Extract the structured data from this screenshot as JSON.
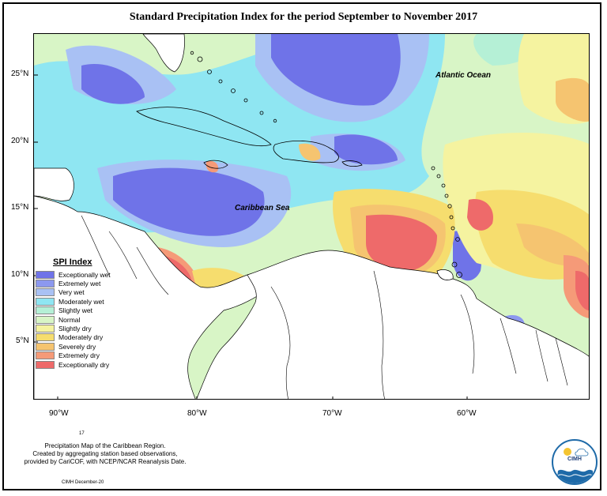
{
  "title": "Standard Precipitation Index for the period September to November 2017",
  "map": {
    "labels": {
      "atlantic": "Atlantic Ocean",
      "caribbean": "Caribbean Sea"
    },
    "lat_ticks": [
      "25°N",
      "20°N",
      "15°N",
      "10°N",
      "5°N"
    ],
    "lon_ticks": [
      "90°W",
      "80°W",
      "70°W",
      "60°W"
    ]
  },
  "legend": {
    "title": "SPI Index",
    "items": [
      {
        "label": "Exceptionally wet",
        "color": "#6f73e8"
      },
      {
        "label": "Extremely wet",
        "color": "#8c98ef"
      },
      {
        "label": "Very wet",
        "color": "#a9c1f4"
      },
      {
        "label": "Moderately wet",
        "color": "#8fe6f2"
      },
      {
        "label": "Slightly wet",
        "color": "#b5f0d6"
      },
      {
        "label": "Normal",
        "color": "#d8f5c6"
      },
      {
        "label": "Slightly dry",
        "color": "#f5f3a0"
      },
      {
        "label": "Moderately dry",
        "color": "#f6dd6e"
      },
      {
        "label": "Severely dry",
        "color": "#f5c470"
      },
      {
        "label": "Extremely dry",
        "color": "#f59a78"
      },
      {
        "label": "Exceptionally dry",
        "color": "#ee6a6a"
      }
    ]
  },
  "footer": {
    "fig_num": "17",
    "note_line1": "Precipitation Map of the Caribbean Region.",
    "note_line2": "Created by aggregating station based observations,",
    "note_line3": "provided by CariCOF, with NCEP/NCAR Reanalysis Date.",
    "credit": "CIMH December-20",
    "logo_text": "CIMH"
  }
}
